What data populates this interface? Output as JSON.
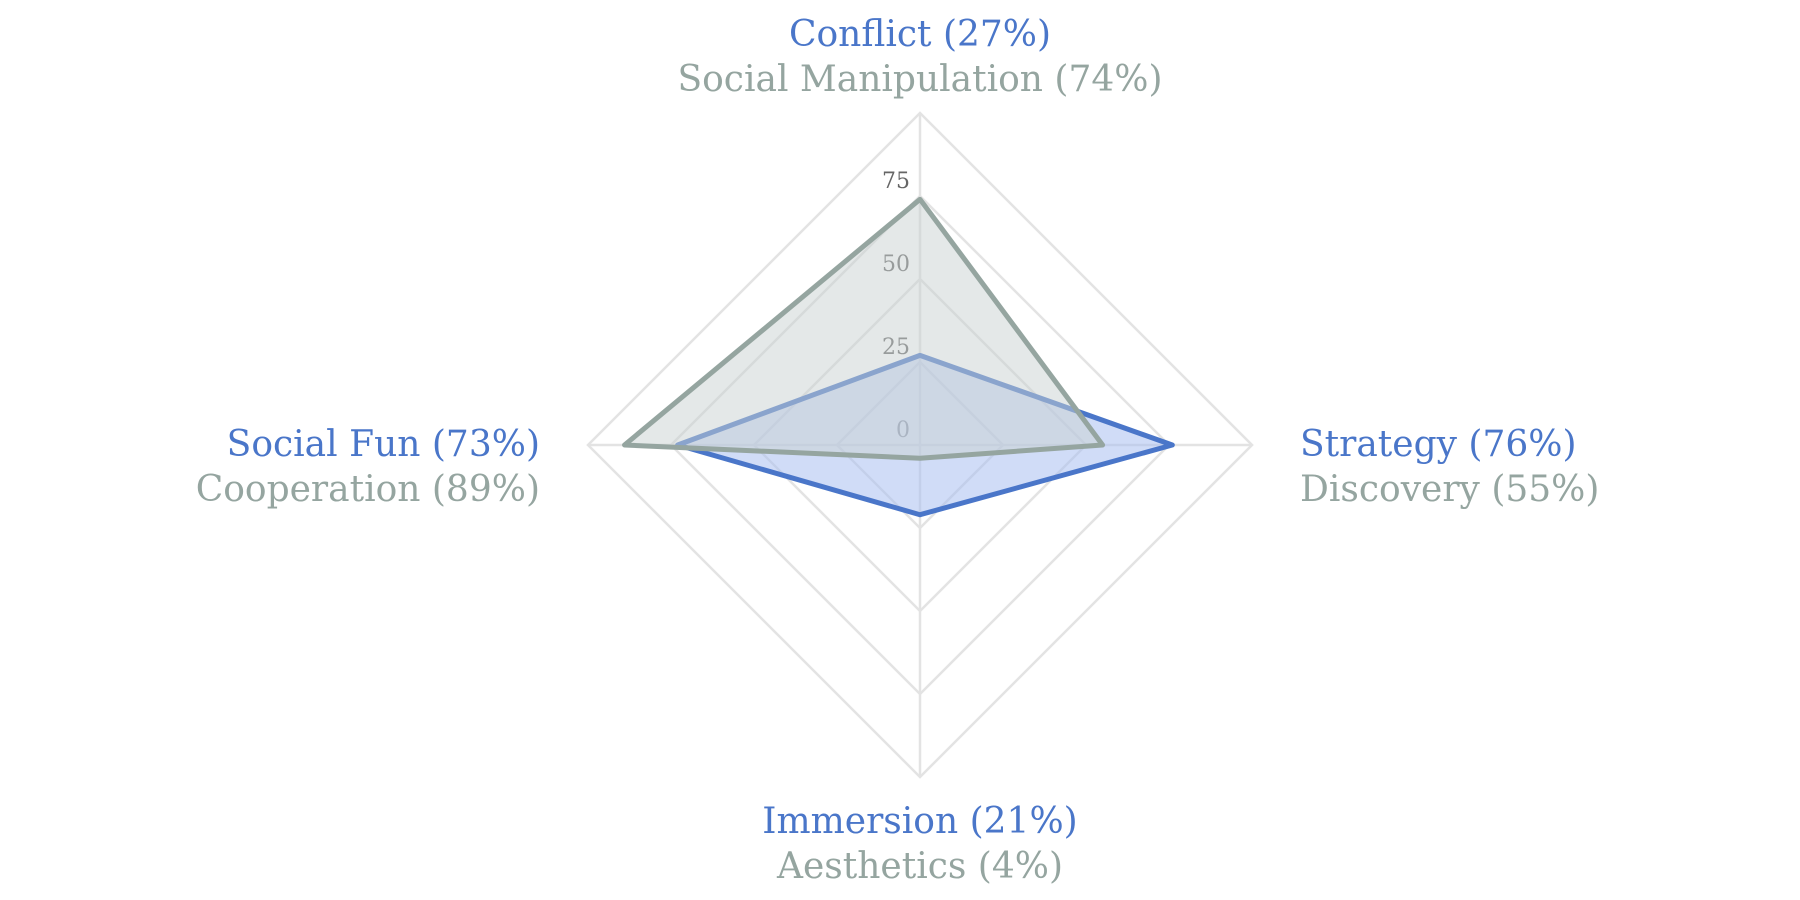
{
  "chart_data": {
    "type": "radar",
    "grid": true,
    "scale": {
      "min": 0,
      "max": 100,
      "ticks": [
        0,
        25,
        50,
        75
      ]
    },
    "axes": [
      {
        "primary": "Conflict (27%)",
        "secondary": "Social Manipulation (74%)"
      },
      {
        "primary": "Strategy (76%)",
        "secondary": "Discovery (55%)"
      },
      {
        "primary": "Immersion (21%)",
        "secondary": "Aesthetics (4%)"
      },
      {
        "primary": "Social Fun (73%)",
        "secondary": "Cooperation (89%)"
      }
    ],
    "series": [
      {
        "color": "#4a76c9",
        "fill": "#a9bff0",
        "values": [
          27,
          76,
          21,
          73
        ]
      },
      {
        "color": "#95a5a0",
        "fill": "#c9d1d1",
        "values": [
          74,
          55,
          4,
          89
        ]
      }
    ]
  }
}
